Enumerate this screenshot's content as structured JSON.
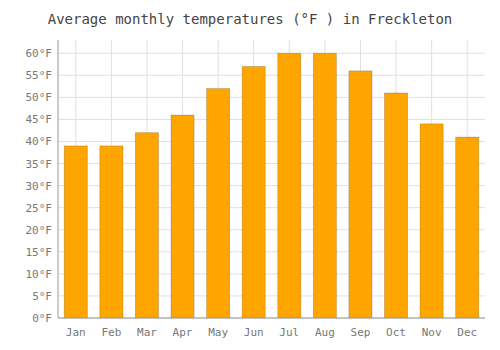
{
  "chart_data": {
    "type": "bar",
    "title": "Average monthly temperatures (°F ) in Freckleton",
    "categories": [
      "Jan",
      "Feb",
      "Mar",
      "Apr",
      "May",
      "Jun",
      "Jul",
      "Aug",
      "Sep",
      "Oct",
      "Nov",
      "Dec"
    ],
    "values": [
      39,
      39,
      42,
      46,
      52,
      57,
      60,
      60,
      56,
      51,
      44,
      41
    ],
    "color": "#FFA500",
    "ylim": [
      0,
      63
    ],
    "yticks": [
      {
        "value": 0,
        "label": "0°F"
      },
      {
        "value": 5,
        "label": "5°F"
      },
      {
        "value": 10,
        "label": "10°F"
      },
      {
        "value": 15,
        "label": "15°F"
      },
      {
        "value": 20,
        "label": "20°F"
      },
      {
        "value": 25,
        "label": "25°F"
      },
      {
        "value": 30,
        "label": "30°F"
      },
      {
        "value": 35,
        "label": "35°F"
      },
      {
        "value": 40,
        "label": "40°F"
      },
      {
        "value": 45,
        "label": "45°F"
      },
      {
        "value": 50,
        "label": "50°F"
      },
      {
        "value": 55,
        "label": "55°F"
      },
      {
        "value": 60,
        "label": "60°F"
      }
    ],
    "grid": true
  }
}
